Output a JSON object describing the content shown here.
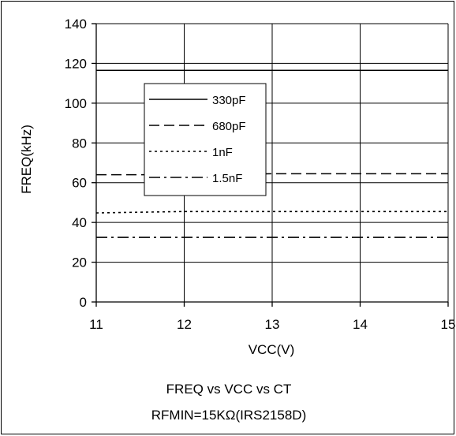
{
  "chart_data": {
    "type": "line",
    "xlabel": "VCC(V)",
    "ylabel": "FREQ(kHz)",
    "xlim": [
      11,
      15
    ],
    "ylim": [
      0,
      140
    ],
    "x_ticks": [
      "11",
      "12",
      "13",
      "14",
      "15"
    ],
    "y_ticks": [
      "0",
      "20",
      "40",
      "60",
      "80",
      "100",
      "120",
      "140"
    ],
    "grid": true,
    "legend_position": "upper-center",
    "x": [
      11,
      12,
      13,
      14,
      15
    ],
    "series": [
      {
        "name": "330pF",
        "style": "solid",
        "values": [
          116.5,
          116.5,
          116.5,
          116.5,
          116.5
        ]
      },
      {
        "name": "680pF",
        "style": "dashed",
        "values": [
          64,
          64,
          64.5,
          64.5,
          64.5
        ]
      },
      {
        "name": "1nF",
        "style": "dotted",
        "values": [
          44.8,
          45.5,
          45.5,
          45.5,
          45.5
        ]
      },
      {
        "name": "1.5nF",
        "style": "dashdot",
        "values": [
          32.5,
          32.5,
          32.5,
          32.5,
          32.5
        ]
      }
    ],
    "caption_line1": "FREQ vs VCC vs CT",
    "caption_line2": "RFMIN=15KΩ(IRS2158D)"
  }
}
